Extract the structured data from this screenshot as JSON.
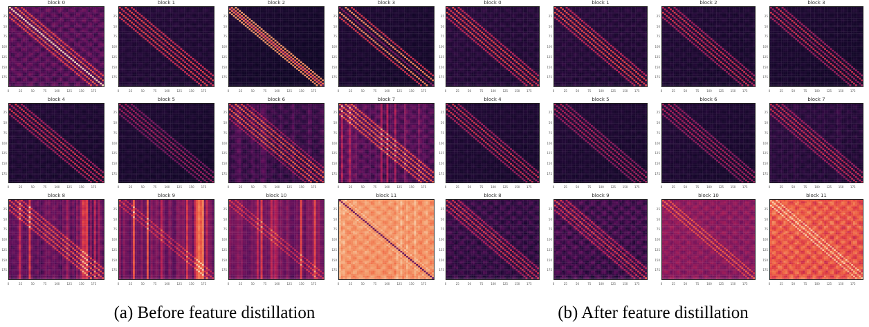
{
  "figure": {
    "panels": [
      {
        "id": "a",
        "caption": "(a) Before feature distillation",
        "blocks": [
          {
            "title": "block 0",
            "base": 0.18,
            "diag": 0.75,
            "off": [
              [
                12,
                0.5
              ],
              [
                24,
                0.35
              ]
            ],
            "vstripes": 0.0,
            "texture": 0.25
          },
          {
            "title": "block 1",
            "base": 0.06,
            "diag": 0.45,
            "off": [
              [
                12,
                0.55
              ],
              [
                24,
                0.45
              ]
            ],
            "vstripes": 0.0,
            "texture": 0.08
          },
          {
            "title": "block 2",
            "base": 0.03,
            "diag": 0.2,
            "off": [
              [
                6,
                0.7
              ],
              [
                12,
                0.8
              ]
            ],
            "vstripes": 0.0,
            "texture": 0.05
          },
          {
            "title": "block 3",
            "base": 0.04,
            "diag": 0.3,
            "off": [
              [
                12,
                0.75
              ],
              [
                24,
                0.5
              ]
            ],
            "vstripes": 0.0,
            "texture": 0.06
          },
          {
            "title": "block 4",
            "base": 0.05,
            "diag": 0.4,
            "off": [
              [
                12,
                0.5
              ],
              [
                24,
                0.35
              ]
            ],
            "vstripes": 0.0,
            "texture": 0.08
          },
          {
            "title": "block 5",
            "base": 0.04,
            "diag": 0.35,
            "off": [
              [
                12,
                0.35
              ],
              [
                24,
                0.25
              ]
            ],
            "vstripes": 0.0,
            "texture": 0.06
          },
          {
            "title": "block 6",
            "base": 0.1,
            "diag": 0.4,
            "off": [
              [
                12,
                0.55
              ],
              [
                24,
                0.45
              ],
              [
                36,
                0.3
              ]
            ],
            "vstripes": 0.1,
            "texture": 0.15
          },
          {
            "title": "block 7",
            "base": 0.15,
            "diag": 0.45,
            "off": [
              [
                12,
                0.5
              ],
              [
                24,
                0.4
              ]
            ],
            "vstripes": 0.35,
            "texture": 0.2
          },
          {
            "title": "block 8",
            "base": 0.18,
            "diag": 0.35,
            "off": [
              [
                12,
                0.4
              ],
              [
                24,
                0.3
              ]
            ],
            "vstripes": 0.5,
            "texture": 0.15
          },
          {
            "title": "block 9",
            "base": 0.2,
            "diag": 0.25,
            "off": [
              [
                12,
                0.25
              ]
            ],
            "vstripes": 0.65,
            "texture": 0.1
          },
          {
            "title": "block 10",
            "base": 0.22,
            "diag": 0.25,
            "off": [
              [
                12,
                0.25
              ]
            ],
            "vstripes": 0.6,
            "texture": 0.1
          },
          {
            "title": "block 11",
            "base": 0.78,
            "diag": -0.6,
            "off": [
              [
                12,
                0.1
              ]
            ],
            "vstripes": 0.1,
            "texture": 0.2
          }
        ]
      },
      {
        "id": "b",
        "caption": "(b) After feature distillation",
        "blocks": [
          {
            "title": "block 0",
            "base": 0.07,
            "diag": 0.45,
            "off": [
              [
                12,
                0.55
              ],
              [
                24,
                0.4
              ]
            ],
            "vstripes": 0.0,
            "texture": 0.1
          },
          {
            "title": "block 1",
            "base": 0.07,
            "diag": 0.5,
            "off": [
              [
                12,
                0.55
              ],
              [
                24,
                0.4
              ]
            ],
            "vstripes": 0.0,
            "texture": 0.1
          },
          {
            "title": "block 2",
            "base": 0.05,
            "diag": 0.4,
            "off": [
              [
                12,
                0.5
              ],
              [
                24,
                0.35
              ]
            ],
            "vstripes": 0.0,
            "texture": 0.08
          },
          {
            "title": "block 3",
            "base": 0.04,
            "diag": 0.35,
            "off": [
              [
                12,
                0.5
              ],
              [
                24,
                0.35
              ]
            ],
            "vstripes": 0.0,
            "texture": 0.06
          },
          {
            "title": "block 4",
            "base": 0.05,
            "diag": 0.35,
            "off": [
              [
                12,
                0.5
              ],
              [
                24,
                0.35
              ]
            ],
            "vstripes": 0.0,
            "texture": 0.06
          },
          {
            "title": "block 5",
            "base": 0.05,
            "diag": 0.35,
            "off": [
              [
                12,
                0.4
              ],
              [
                24,
                0.3
              ]
            ],
            "vstripes": 0.0,
            "texture": 0.06
          },
          {
            "title": "block 6",
            "base": 0.05,
            "diag": 0.35,
            "off": [
              [
                12,
                0.4
              ],
              [
                24,
                0.3
              ]
            ],
            "vstripes": 0.0,
            "texture": 0.06
          },
          {
            "title": "block 7",
            "base": 0.07,
            "diag": 0.4,
            "off": [
              [
                12,
                0.45
              ],
              [
                24,
                0.3
              ]
            ],
            "vstripes": 0.05,
            "texture": 0.1
          },
          {
            "title": "block 8",
            "base": 0.1,
            "diag": 0.4,
            "off": [
              [
                12,
                0.45
              ],
              [
                24,
                0.3
              ]
            ],
            "vstripes": 0.0,
            "texture": 0.2
          },
          {
            "title": "block 9",
            "base": 0.12,
            "diag": 0.4,
            "off": [
              [
                12,
                0.4
              ],
              [
                24,
                0.3
              ]
            ],
            "vstripes": 0.0,
            "texture": 0.25
          },
          {
            "title": "block 10",
            "base": 0.33,
            "diag": 0.3,
            "off": [
              [
                12,
                0.3
              ]
            ],
            "vstripes": 0.0,
            "texture": 0.2
          },
          {
            "title": "block 11",
            "base": 0.62,
            "diag": 0.2,
            "off": [
              [
                12,
                0.3
              ]
            ],
            "vstripes": 0.0,
            "texture": 0.35
          }
        ]
      }
    ],
    "axis": {
      "ticks": [
        0,
        25,
        50,
        75,
        100,
        125,
        150,
        175
      ],
      "max": 197
    },
    "colormap": [
      "#03051a",
      "#2b0b3e",
      "#5b0f5a",
      "#87195c",
      "#b41e55",
      "#de3b45",
      "#f06a45",
      "#f49f6f",
      "#f8d0ae"
    ]
  }
}
